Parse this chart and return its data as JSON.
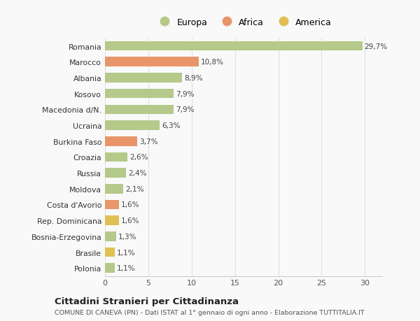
{
  "categories": [
    "Polonia",
    "Brasile",
    "Bosnia-Erzegovina",
    "Rep. Dominicana",
    "Costa d'Avorio",
    "Moldova",
    "Russia",
    "Croazia",
    "Burkina Faso",
    "Ucraina",
    "Macedonia d/N.",
    "Kosovo",
    "Albania",
    "Marocco",
    "Romania"
  ],
  "values": [
    1.1,
    1.1,
    1.3,
    1.6,
    1.6,
    2.1,
    2.4,
    2.6,
    3.7,
    6.3,
    7.9,
    7.9,
    8.9,
    10.8,
    29.7
  ],
  "labels": [
    "1,1%",
    "1,1%",
    "1,3%",
    "1,6%",
    "1,6%",
    "2,1%",
    "2,4%",
    "2,6%",
    "3,7%",
    "6,3%",
    "7,9%",
    "7,9%",
    "8,9%",
    "10,8%",
    "29,7%"
  ],
  "colors": [
    "#b5c98a",
    "#e0c050",
    "#b5c98a",
    "#e0c050",
    "#e8956a",
    "#b5c98a",
    "#b5c98a",
    "#b5c98a",
    "#e8956a",
    "#b5c98a",
    "#b5c98a",
    "#b5c98a",
    "#b5c98a",
    "#e8956a",
    "#b5c98a"
  ],
  "legend_labels": [
    "Europa",
    "Africa",
    "America"
  ],
  "legend_colors": [
    "#b5c98a",
    "#e8956a",
    "#e0c050"
  ],
  "title": "Cittadini Stranieri per Cittadinanza",
  "subtitle": "COMUNE DI CANEVA (PN) - Dati ISTAT al 1° gennaio di ogni anno - Elaborazione TUTTITALIA.IT",
  "xlim": [
    0,
    32
  ],
  "xticks": [
    0,
    5,
    10,
    15,
    20,
    25,
    30
  ],
  "background_color": "#f9f9f9",
  "grid_color": "#e0e0e0",
  "bar_height": 0.6
}
